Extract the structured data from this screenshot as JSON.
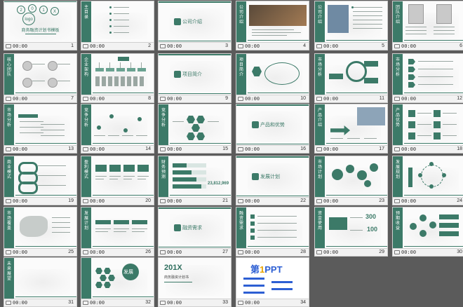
{
  "slides": [
    {
      "num": "1",
      "time": "00:00",
      "layout": "cover",
      "title": "商务融资计划书模板",
      "texts": [
        "2",
        "0",
        "1",
        "X",
        "logo"
      ]
    },
    {
      "num": "2",
      "time": "00:00",
      "layout": "toc",
      "vtitle": "主目录"
    },
    {
      "num": "3",
      "time": "00:00",
      "layout": "section",
      "ctitle": "公司介绍"
    },
    {
      "num": "4",
      "time": "00:00",
      "layout": "vbar",
      "vtitle": "公司介绍",
      "variant": "img"
    },
    {
      "num": "5",
      "time": "00:00",
      "layout": "vbar",
      "vtitle": "公司介绍",
      "variant": "img2"
    },
    {
      "num": "6",
      "time": "00:00",
      "layout": "vbar",
      "vtitle": "团队介绍",
      "variant": "photos2"
    },
    {
      "num": "7",
      "time": "00:00",
      "layout": "vbar",
      "vtitle": "核心团队",
      "variant": "photos4"
    },
    {
      "num": "8",
      "time": "00:00",
      "layout": "vbar",
      "vtitle": "企业架构",
      "variant": "org"
    },
    {
      "num": "9",
      "time": "00:00",
      "layout": "section",
      "ctitle": "项目简介"
    },
    {
      "num": "10",
      "time": "00:00",
      "layout": "vbar",
      "vtitle": "项目简介",
      "variant": "hex"
    },
    {
      "num": "11",
      "time": "00:00",
      "layout": "vbar",
      "vtitle": "市场分析",
      "variant": "circle"
    },
    {
      "num": "12",
      "time": "00:00",
      "layout": "vbar",
      "vtitle": "市场分析",
      "variant": "arrows"
    },
    {
      "num": "13",
      "time": "00:00",
      "layout": "vbar",
      "vtitle": "市场分析",
      "variant": "text"
    },
    {
      "num": "14",
      "time": "00:00",
      "layout": "vbar",
      "vtitle": "竞争分析",
      "variant": "wave"
    },
    {
      "num": "15",
      "time": "00:00",
      "layout": "vbar",
      "vtitle": "竞争分析",
      "variant": "hex2"
    },
    {
      "num": "16",
      "time": "00:00",
      "layout": "section",
      "ctitle": "产品和优势"
    },
    {
      "num": "17",
      "time": "00:00",
      "layout": "vbar",
      "vtitle": "产品介绍",
      "variant": "img3"
    },
    {
      "num": "18",
      "time": "00:00",
      "layout": "vbar",
      "vtitle": "产品优势",
      "variant": "icons"
    },
    {
      "num": "19",
      "time": "00:00",
      "layout": "vbar",
      "vtitle": "商业模式",
      "variant": "curve"
    },
    {
      "num": "20",
      "time": "00:00",
      "layout": "vbar",
      "vtitle": "盈利模式",
      "variant": "boxes"
    },
    {
      "num": "21",
      "time": "00:00",
      "layout": "vbar",
      "vtitle": "财务预测",
      "variant": "bars",
      "extra": "23,812,969"
    },
    {
      "num": "22",
      "time": "00:00",
      "layout": "section",
      "ctitle": "发展计划"
    },
    {
      "num": "23",
      "time": "00:00",
      "layout": "vbar",
      "vtitle": "市场计划",
      "variant": "bubbles"
    },
    {
      "num": "24",
      "time": "00:00",
      "layout": "vbar",
      "vtitle": "发展规划",
      "variant": "rocket"
    },
    {
      "num": "25",
      "time": "00:00",
      "layout": "vbar",
      "vtitle": "市场覆盖",
      "variant": "map"
    },
    {
      "num": "26",
      "time": "00:00",
      "layout": "vbar",
      "vtitle": "发展计划",
      "variant": "timeline"
    },
    {
      "num": "27",
      "time": "00:00",
      "layout": "section",
      "ctitle": "融资需求"
    },
    {
      "num": "28",
      "time": "00:00",
      "layout": "vbar",
      "vtitle": "融资需求",
      "variant": "list"
    },
    {
      "num": "29",
      "time": "00:00",
      "layout": "vbar",
      "vtitle": "资金使用",
      "variant": "stats",
      "stat1": "300",
      "stat2": "100"
    },
    {
      "num": "30",
      "time": "00:00",
      "layout": "vbar",
      "vtitle": "预期收益",
      "variant": "cycle"
    },
    {
      "num": "31",
      "time": "00:00",
      "layout": "vbar",
      "vtitle": "未来展望",
      "variant": "blank"
    },
    {
      "num": "32",
      "time": "00:00",
      "layout": "vbar",
      "vtitle": "",
      "variant": "honey",
      "badge": "发展"
    },
    {
      "num": "33",
      "time": "00:00",
      "layout": "end",
      "bigtitle": "201X",
      "subtitle": "商务融资计划书"
    },
    {
      "num": "34",
      "time": "00:00",
      "layout": "brand",
      "brand_a": "第",
      "brand_b": "1",
      "brand_c": "PPT"
    }
  ],
  "colors": {
    "accent": "#3c7a68",
    "background": "#5b5b5b"
  }
}
